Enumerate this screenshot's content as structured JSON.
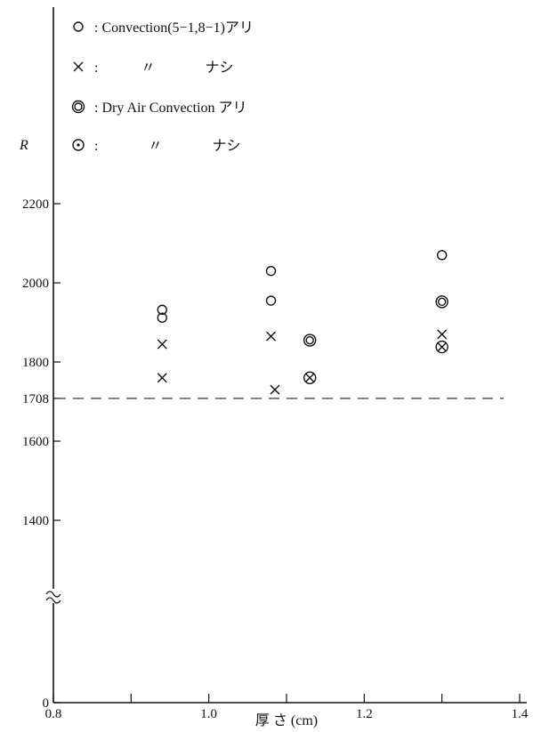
{
  "chart_data": {
    "type": "scatter",
    "title": "",
    "xlabel": "厚 さ (cm)",
    "ylabel": "R",
    "xlim": [
      0.8,
      1.4
    ],
    "x_ticks": [
      0.8,
      1.0,
      1.2,
      1.4
    ],
    "x_tick_labels": [
      "0.8",
      "1.0",
      "1.2",
      "1.4"
    ],
    "y_ticks": [
      0,
      1400,
      1600,
      1708,
      1800,
      2000,
      2200
    ],
    "y_tick_labels": [
      "0",
      "1400",
      "1600",
      "1708",
      "1800",
      "2000",
      "2200"
    ],
    "y_axis_break": true,
    "grid": false,
    "legend_position": "top",
    "reference_line": {
      "y": 1708,
      "label": "1708",
      "style": "dashed"
    },
    "series": [
      {
        "marker": "circle",
        "label_text": ": Convection(5−1,8−1)アリ",
        "points": [
          [
            0.94,
            1932
          ],
          [
            0.94,
            1912
          ],
          [
            1.08,
            2030
          ],
          [
            1.08,
            1955
          ],
          [
            1.3,
            2070
          ]
        ]
      },
      {
        "marker": "cross",
        "label_text": ":            〃              ナシ",
        "points": [
          [
            0.94,
            1845
          ],
          [
            0.94,
            1760
          ],
          [
            1.08,
            1865
          ],
          [
            1.085,
            1730
          ],
          [
            1.3,
            1870
          ]
        ]
      },
      {
        "marker": "double-circle",
        "label_text": ": Dry Air Convection アリ",
        "points": [
          [
            1.13,
            1855
          ],
          [
            1.3,
            1952
          ]
        ]
      },
      {
        "marker": "circled-cross",
        "label_text": ":              〃              ナシ",
        "points": [
          [
            1.13,
            1760
          ],
          [
            1.3,
            1838
          ]
        ]
      }
    ]
  }
}
